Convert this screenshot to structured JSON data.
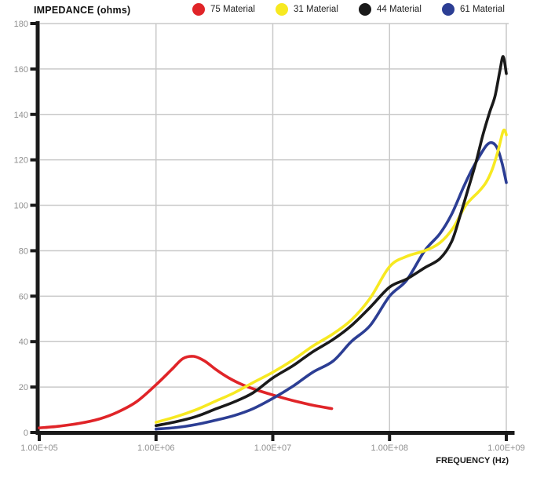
{
  "chart_data": {
    "type": "line",
    "title": "IMPEDANCE (ohms)",
    "xlabel": "FREQUENCY (Hz)",
    "ylabel": "IMPEDANCE (ohms)",
    "x_scale": "log",
    "xlim": [
      100000.0,
      1000000000.0
    ],
    "ylim": [
      0,
      180
    ],
    "grid": true,
    "legend_position": "top",
    "y_ticks": [
      0,
      20,
      40,
      60,
      80,
      100,
      120,
      140,
      160,
      180
    ],
    "x_ticks": [
      {
        "value": 100000.0,
        "label": "1.00E+05"
      },
      {
        "value": 1000000.0,
        "label": "1.00E+06"
      },
      {
        "value": 10000000.0,
        "label": "1.00E+07"
      },
      {
        "value": 100000000.0,
        "label": "1.00E+08"
      },
      {
        "value": 1000000000.0,
        "label": "1.00E+09"
      }
    ],
    "style": {
      "axis_color": "#1a1a1a",
      "grid_color": "#c9c9c9",
      "tick_label_color": "#8f8f8f",
      "background": "#ffffff"
    },
    "series": [
      {
        "name": "75 Material",
        "color": "#e02428",
        "points": [
          [
            100000.0,
            2
          ],
          [
            150000.0,
            2.8
          ],
          [
            220000.0,
            4
          ],
          [
            330000.0,
            6
          ],
          [
            470000.0,
            9
          ],
          [
            680000.0,
            13.5
          ],
          [
            1000000.0,
            21
          ],
          [
            1350000.0,
            27.5
          ],
          [
            1700000.0,
            32.5
          ],
          [
            2100000.0,
            33.5
          ],
          [
            2600000.0,
            31.5
          ],
          [
            3300000.0,
            27.5
          ],
          [
            4200000.0,
            24
          ],
          [
            5500000.0,
            21
          ],
          [
            7000000.0,
            19
          ],
          [
            10000000.0,
            16.5
          ],
          [
            15000000.0,
            14
          ],
          [
            22000000.0,
            12
          ],
          [
            32000000.0,
            10.5
          ]
        ]
      },
      {
        "name": "31 Material",
        "color": "#f7e921",
        "points": [
          [
            1000000.0,
            4.5
          ],
          [
            1500000.0,
            7
          ],
          [
            2200000.0,
            10
          ],
          [
            3300000.0,
            14
          ],
          [
            4700000.0,
            17.5
          ],
          [
            6800000.0,
            22
          ],
          [
            10000000.0,
            26.5
          ],
          [
            15000000.0,
            32
          ],
          [
            22000000.0,
            38
          ],
          [
            33000000.0,
            43.5
          ],
          [
            47000000.0,
            49.5
          ],
          [
            68000000.0,
            59
          ],
          [
            100000000.0,
            73
          ],
          [
            140000000.0,
            77.5
          ],
          [
            200000000.0,
            80
          ],
          [
            270000000.0,
            83.5
          ],
          [
            350000000.0,
            90
          ],
          [
            450000000.0,
            100
          ],
          [
            580000000.0,
            106
          ],
          [
            670000000.0,
            110
          ],
          [
            760000000.0,
            116
          ],
          [
            850000000.0,
            124
          ],
          [
            930000000.0,
            132
          ],
          [
            970000000.0,
            133
          ],
          [
            1000000000.0,
            131
          ]
        ]
      },
      {
        "name": "44 Material",
        "color": "#1a1a1a",
        "points": [
          [
            1000000.0,
            3
          ],
          [
            1500000.0,
            4.8
          ],
          [
            2200000.0,
            7
          ],
          [
            3300000.0,
            10.5
          ],
          [
            4700000.0,
            13.5
          ],
          [
            6800000.0,
            17.5
          ],
          [
            10000000.0,
            24
          ],
          [
            15000000.0,
            29.5
          ],
          [
            22000000.0,
            35.5
          ],
          [
            33000000.0,
            41
          ],
          [
            47000000.0,
            47
          ],
          [
            68000000.0,
            55
          ],
          [
            100000000.0,
            64
          ],
          [
            140000000.0,
            67.5
          ],
          [
            200000000.0,
            72.5
          ],
          [
            270000000.0,
            76.5
          ],
          [
            340000000.0,
            84
          ],
          [
            400000000.0,
            95
          ],
          [
            470000000.0,
            107
          ],
          [
            550000000.0,
            119
          ],
          [
            630000000.0,
            131
          ],
          [
            720000000.0,
            141
          ],
          [
            800000000.0,
            148
          ],
          [
            880000000.0,
            159
          ],
          [
            940000000.0,
            165.5
          ],
          [
            1000000000.0,
            158
          ]
        ]
      },
      {
        "name": "61 Material",
        "color": "#2c3e94",
        "points": [
          [
            1000000.0,
            1.5
          ],
          [
            1500000.0,
            2.2
          ],
          [
            2200000.0,
            3.5
          ],
          [
            3300000.0,
            5.5
          ],
          [
            4700000.0,
            7.5
          ],
          [
            6800000.0,
            10.5
          ],
          [
            10000000.0,
            15
          ],
          [
            15000000.0,
            20.5
          ],
          [
            22000000.0,
            26.5
          ],
          [
            33000000.0,
            31.5
          ],
          [
            47000000.0,
            40
          ],
          [
            68000000.0,
            47
          ],
          [
            100000000.0,
            60
          ],
          [
            140000000.0,
            67
          ],
          [
            200000000.0,
            80
          ],
          [
            270000000.0,
            87.5
          ],
          [
            340000000.0,
            96
          ],
          [
            430000000.0,
            108
          ],
          [
            500000000.0,
            115
          ],
          [
            580000000.0,
            121
          ],
          [
            680000000.0,
            126.5
          ],
          [
            760000000.0,
            127.5
          ],
          [
            840000000.0,
            125
          ],
          [
            920000000.0,
            118.5
          ],
          [
            1000000000.0,
            110
          ]
        ]
      }
    ]
  }
}
